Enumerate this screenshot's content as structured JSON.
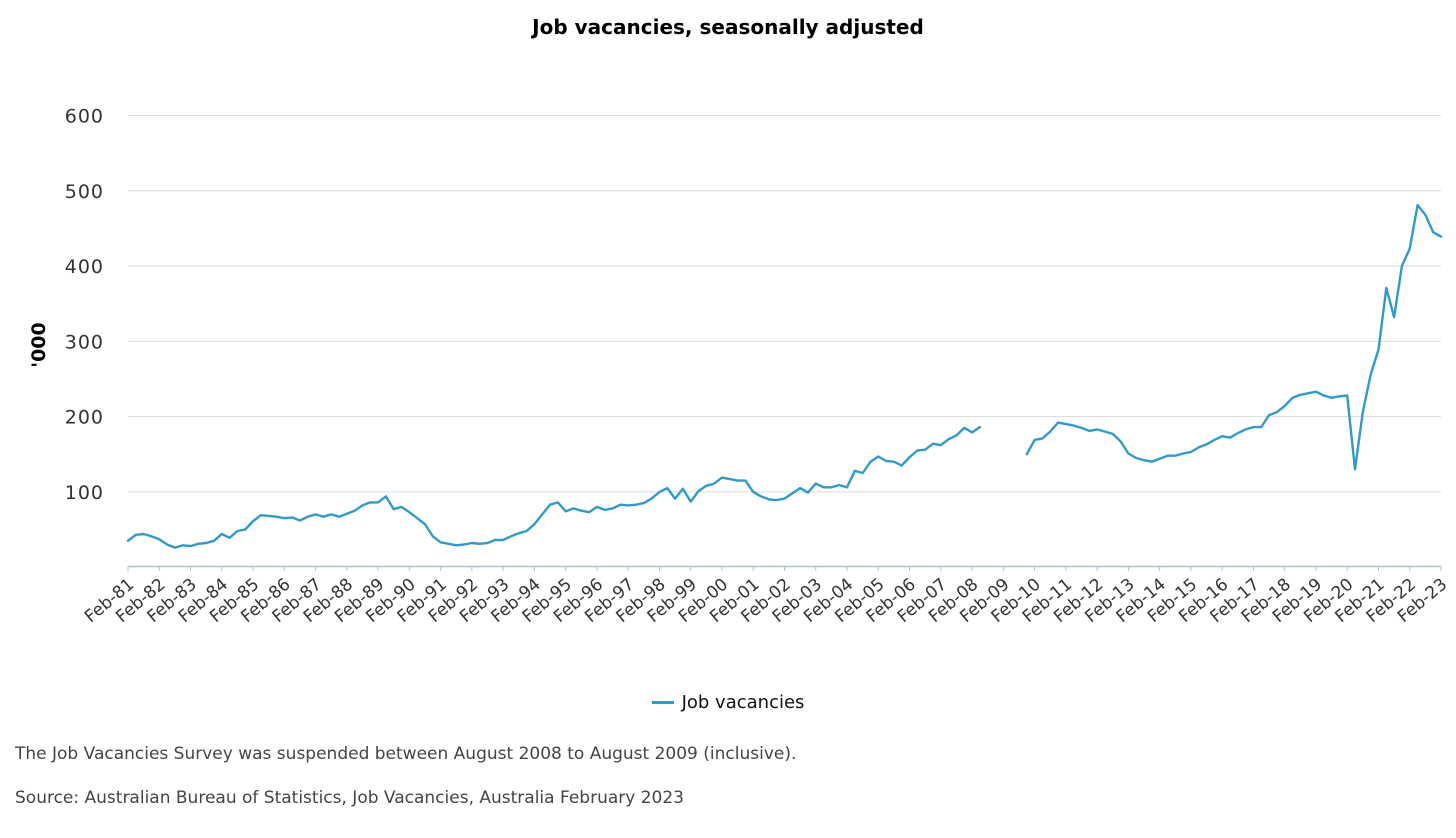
{
  "colors": {
    "series": "#3399c8",
    "grid": "#d5dbe0",
    "axis": "#a8c4d8",
    "text": "#333333"
  },
  "chart_data": {
    "type": "line",
    "title": "Job vacancies, seasonally adjusted",
    "ylabel": "'000",
    "xlabel": "",
    "ylim": [
      0,
      600
    ],
    "yticks": [
      100,
      200,
      300,
      400,
      500,
      600
    ],
    "grid": true,
    "legend_position": "bottom-center",
    "x_start": "Feb-81",
    "x_end": "Feb-23",
    "x_tick_labels": [
      "Feb-81",
      "Feb-82",
      "Feb-83",
      "Feb-84",
      "Feb-85",
      "Feb-86",
      "Feb-87",
      "Feb-88",
      "Feb-89",
      "Feb-90",
      "Feb-91",
      "Feb-92",
      "Feb-93",
      "Feb-94",
      "Feb-95",
      "Feb-96",
      "Feb-97",
      "Feb-98",
      "Feb-99",
      "Feb-00",
      "Feb-01",
      "Feb-02",
      "Feb-03",
      "Feb-04",
      "Feb-05",
      "Feb-06",
      "Feb-07",
      "Feb-08",
      "Feb-09",
      "Feb-10",
      "Feb-11",
      "Feb-12",
      "Feb-13",
      "Feb-14",
      "Feb-15",
      "Feb-16",
      "Feb-17",
      "Feb-18",
      "Feb-19",
      "Feb-20",
      "Feb-21",
      "Feb-22",
      "Feb-23"
    ],
    "series": [
      {
        "name": "Job vacancies",
        "segments": [
          [
            [
              "Feb-81",
              35
            ],
            [
              "May-81",
              43
            ],
            [
              "Aug-81",
              44
            ],
            [
              "Nov-81",
              41
            ],
            [
              "Feb-82",
              37
            ],
            [
              "May-82",
              30
            ],
            [
              "Aug-82",
              26
            ],
            [
              "Nov-82",
              29
            ],
            [
              "Feb-83",
              28
            ],
            [
              "May-83",
              31
            ],
            [
              "Aug-83",
              32
            ],
            [
              "Nov-83",
              35
            ],
            [
              "Feb-84",
              44
            ],
            [
              "May-84",
              39
            ],
            [
              "Aug-84",
              48
            ],
            [
              "Nov-84",
              50
            ],
            [
              "Feb-85",
              61
            ],
            [
              "May-85",
              69
            ],
            [
              "Aug-85",
              68
            ],
            [
              "Nov-85",
              67
            ],
            [
              "Feb-86",
              65
            ],
            [
              "May-86",
              66
            ],
            [
              "Aug-86",
              62
            ],
            [
              "Nov-86",
              67
            ],
            [
              "Feb-87",
              70
            ],
            [
              "May-87",
              67
            ],
            [
              "Aug-87",
              70
            ],
            [
              "Nov-87",
              67
            ],
            [
              "Feb-88",
              71
            ],
            [
              "May-88",
              75
            ],
            [
              "Aug-88",
              82
            ],
            [
              "Nov-88",
              86
            ],
            [
              "Feb-89",
              86
            ],
            [
              "May-89",
              94
            ],
            [
              "Aug-89",
              77
            ],
            [
              "Nov-89",
              80
            ],
            [
              "Feb-90",
              73
            ],
            [
              "May-90",
              65
            ],
            [
              "Aug-90",
              57
            ],
            [
              "Nov-90",
              41
            ],
            [
              "Feb-91",
              33
            ],
            [
              "May-91",
              31
            ],
            [
              "Aug-91",
              29
            ],
            [
              "Nov-91",
              30
            ],
            [
              "Feb-92",
              32
            ],
            [
              "May-92",
              31
            ],
            [
              "Aug-92",
              32
            ],
            [
              "Nov-92",
              36
            ],
            [
              "Feb-93",
              36
            ],
            [
              "May-93",
              41
            ],
            [
              "Aug-93",
              45
            ],
            [
              "Nov-93",
              48
            ],
            [
              "Feb-94",
              57
            ],
            [
              "May-94",
              70
            ],
            [
              "Aug-94",
              83
            ],
            [
              "Nov-94",
              86
            ],
            [
              "Feb-95",
              74
            ],
            [
              "May-95",
              78
            ],
            [
              "Aug-95",
              75
            ],
            [
              "Nov-95",
              73
            ],
            [
              "Feb-96",
              80
            ],
            [
              "May-96",
              76
            ],
            [
              "Aug-96",
              78
            ],
            [
              "Nov-96",
              83
            ],
            [
              "Feb-97",
              82
            ],
            [
              "May-97",
              83
            ],
            [
              "Aug-97",
              85
            ],
            [
              "Nov-97",
              91
            ],
            [
              "Feb-98",
              100
            ],
            [
              "May-98",
              105
            ],
            [
              "Aug-98",
              91
            ],
            [
              "Nov-98",
              104
            ],
            [
              "Feb-99",
              87
            ],
            [
              "May-99",
              101
            ],
            [
              "Aug-99",
              108
            ],
            [
              "Nov-99",
              111
            ],
            [
              "Feb-00",
              119
            ],
            [
              "May-00",
              117
            ],
            [
              "Aug-00",
              115
            ],
            [
              "Nov-00",
              115
            ],
            [
              "Feb-01",
              100
            ],
            [
              "May-01",
              94
            ],
            [
              "Aug-01",
              90
            ],
            [
              "Nov-01",
              89
            ],
            [
              "Feb-02",
              91
            ],
            [
              "May-02",
              98
            ],
            [
              "Aug-02",
              105
            ],
            [
              "Nov-02",
              99
            ],
            [
              "Feb-03",
              111
            ],
            [
              "May-03",
              106
            ],
            [
              "Aug-03",
              106
            ],
            [
              "Nov-03",
              109
            ],
            [
              "Feb-04",
              106
            ],
            [
              "May-04",
              128
            ],
            [
              "Aug-04",
              125
            ],
            [
              "Nov-04",
              140
            ],
            [
              "Feb-05",
              147
            ],
            [
              "May-05",
              141
            ],
            [
              "Aug-05",
              140
            ],
            [
              "Nov-05",
              135
            ],
            [
              "Feb-06",
              146
            ],
            [
              "May-06",
              155
            ],
            [
              "Aug-06",
              156
            ],
            [
              "Nov-06",
              164
            ],
            [
              "Feb-07",
              162
            ],
            [
              "May-07",
              170
            ],
            [
              "Aug-07",
              175
            ],
            [
              "Nov-07",
              185
            ],
            [
              "Feb-08",
              179
            ],
            [
              "May-08",
              186
            ]
          ],
          [
            [
              "Nov-09",
              150
            ],
            [
              "Feb-10",
              169
            ],
            [
              "May-10",
              171
            ],
            [
              "Aug-10",
              180
            ],
            [
              "Nov-10",
              192
            ],
            [
              "Feb-11",
              190
            ],
            [
              "May-11",
              188
            ],
            [
              "Aug-11",
              185
            ],
            [
              "Nov-11",
              181
            ],
            [
              "Feb-12",
              183
            ],
            [
              "May-12",
              180
            ],
            [
              "Aug-12",
              177
            ],
            [
              "Nov-12",
              167
            ],
            [
              "Feb-13",
              151
            ],
            [
              "May-13",
              145
            ],
            [
              "Aug-13",
              142
            ],
            [
              "Nov-13",
              140
            ],
            [
              "Feb-14",
              144
            ],
            [
              "May-14",
              148
            ],
            [
              "Aug-14",
              148
            ],
            [
              "Nov-14",
              151
            ],
            [
              "Feb-15",
              153
            ],
            [
              "May-15",
              159
            ],
            [
              "Aug-15",
              163
            ],
            [
              "Nov-15",
              169
            ],
            [
              "Feb-16",
              174
            ],
            [
              "May-16",
              172
            ],
            [
              "Aug-16",
              178
            ],
            [
              "Nov-16",
              183
            ],
            [
              "Feb-17",
              186
            ],
            [
              "May-17",
              186
            ],
            [
              "Aug-17",
              202
            ],
            [
              "Nov-17",
              206
            ],
            [
              "Feb-18",
              214
            ],
            [
              "May-18",
              225
            ],
            [
              "Aug-18",
              229
            ],
            [
              "Nov-18",
              231
            ],
            [
              "Feb-19",
              233
            ],
            [
              "May-19",
              228
            ],
            [
              "Aug-19",
              225
            ],
            [
              "Nov-19",
              227
            ],
            [
              "Feb-20",
              228
            ],
            [
              "May-20",
              130
            ],
            [
              "Aug-20",
              206
            ],
            [
              "Nov-20",
              256
            ],
            [
              "Feb-21",
              289
            ],
            [
              "May-21",
              371
            ],
            [
              "Aug-21",
              332
            ],
            [
              "Nov-21",
              400
            ],
            [
              "Feb-22",
              423
            ],
            [
              "May-22",
              481
            ],
            [
              "Aug-22",
              468
            ],
            [
              "Nov-22",
              445
            ],
            [
              "Feb-23",
              439
            ]
          ]
        ]
      }
    ]
  },
  "notes": {
    "suspension": "The Job Vacancies Survey was suspended between August 2008 to August 2009 (inclusive).",
    "source": "Source: Australian Bureau of Statistics, Job Vacancies, Australia February 2023"
  }
}
